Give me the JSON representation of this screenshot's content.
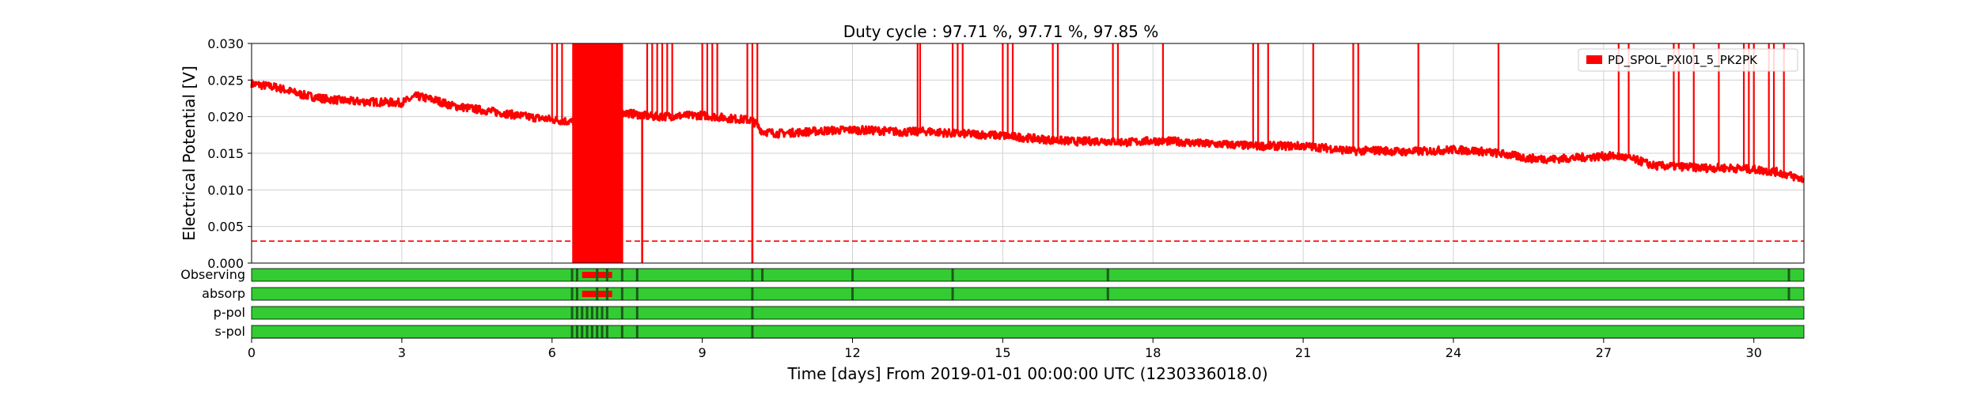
{
  "chart_data": {
    "type": "line",
    "title": "Duty cycle : 97.71 %, 97.71 %, 97.85 %",
    "xlabel": "Time [days] From 2019-01-01 00:00:00 UTC (1230336018.0)",
    "ylabel": "Electrical Potential [V]",
    "xlim": [
      0,
      31
    ],
    "ylim": [
      0,
      0.03
    ],
    "x_ticks": [
      0,
      3,
      6,
      9,
      12,
      15,
      18,
      21,
      24,
      27,
      30
    ],
    "y_ticks": [
      "0.000",
      "0.005",
      "0.010",
      "0.015",
      "0.020",
      "0.025",
      "0.030"
    ],
    "grid": true,
    "legend": {
      "placement": "top-right",
      "entries": [
        "PD_SPOL_PXI01_5_PK2PK"
      ]
    },
    "threshold": {
      "value": 0.003,
      "style": "dashed",
      "color": "#ff0000"
    },
    "series": [
      {
        "name": "PD_SPOL_PXI01_5_PK2PK",
        "color": "#ff0000",
        "baseline": {
          "x": [
            0,
            0.5,
            1,
            1.5,
            2,
            2.5,
            3,
            3.3,
            3.7,
            4,
            4.5,
            5,
            5.5,
            6,
            6.4,
            7,
            7.5,
            8,
            8.5,
            9,
            9.5,
            10,
            10.2,
            10.5,
            11,
            11.5,
            12,
            12.5,
            13,
            13.5,
            14,
            14.5,
            15,
            15.5,
            16,
            16.5,
            17,
            17.5,
            18,
            18.5,
            19,
            19.5,
            20,
            20.5,
            21,
            21.5,
            22,
            22.5,
            23,
            23.5,
            24,
            24.5,
            25,
            25.5,
            26,
            26.5,
            27,
            27.3,
            27.7,
            28,
            28.5,
            29,
            29.5,
            30,
            30.5,
            31
          ],
          "y": [
            0.0245,
            0.024,
            0.023,
            0.0224,
            0.0221,
            0.022,
            0.0219,
            0.0228,
            0.0222,
            0.0215,
            0.021,
            0.0205,
            0.02,
            0.0196,
            0.0193,
            0.0203,
            0.0205,
            0.02,
            0.0201,
            0.0202,
            0.0198,
            0.0195,
            0.018,
            0.0177,
            0.0179,
            0.0181,
            0.0182,
            0.0181,
            0.0179,
            0.018,
            0.0177,
            0.0176,
            0.0174,
            0.0171,
            0.0168,
            0.0166,
            0.0167,
            0.0165,
            0.0167,
            0.0166,
            0.0163,
            0.0162,
            0.016,
            0.016,
            0.016,
            0.0157,
            0.0153,
            0.0154,
            0.0152,
            0.0153,
            0.0155,
            0.0153,
            0.0149,
            0.0143,
            0.0142,
            0.0144,
            0.0146,
            0.0146,
            0.014,
            0.0133,
            0.0132,
            0.013,
            0.013,
            0.0128,
            0.0124,
            0.0114
          ]
        },
        "spikes_to_top": [
          6.0,
          6.1,
          6.2,
          6.6,
          6.7,
          6.8,
          6.9,
          7.0,
          7.1,
          7.2,
          7.3,
          7.4,
          7.9,
          8.0,
          8.1,
          8.2,
          8.3,
          8.4,
          9.0,
          9.1,
          9.2,
          9.3,
          9.9,
          10.0,
          10.1,
          13.3,
          13.35,
          14.0,
          14.1,
          14.2,
          15.0,
          15.1,
          15.2,
          16.0,
          16.1,
          17.2,
          17.3,
          18.2,
          20.0,
          20.1,
          20.3,
          21.2,
          22.0,
          22.1,
          23.3,
          24.9,
          27.3,
          27.5,
          28.4,
          28.5,
          28.8,
          29.3,
          29.8,
          29.9,
          30.0,
          30.3,
          30.4,
          30.6
        ],
        "dropouts_to_zero": [
          6.5,
          6.55,
          6.6,
          6.7,
          6.8,
          6.9,
          7.0,
          7.1,
          7.2,
          7.3,
          7.4,
          7.8,
          10.0
        ]
      }
    ],
    "state_segments": {
      "rows": [
        "Observing",
        "absorp",
        "p-pol",
        "s-pol"
      ],
      "on_color": "#33cc33",
      "off_color": "#ff0000",
      "marker_color": "#1a5c1a"
    }
  }
}
